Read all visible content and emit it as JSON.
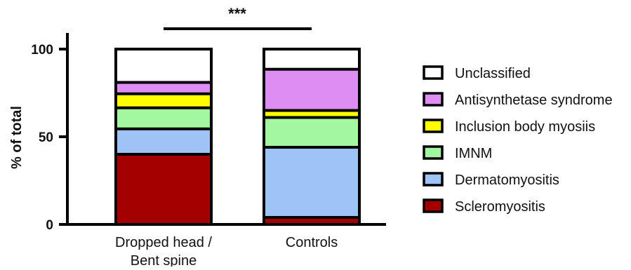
{
  "chart_data": {
    "type": "bar",
    "stacked": true,
    "title": "",
    "xlabel": "",
    "ylabel": "% of total",
    "ylim": [
      0,
      110
    ],
    "yticks": [
      0,
      50,
      100
    ],
    "categories": [
      "Dropped head /\nBent spine",
      "Controls"
    ],
    "series": [
      {
        "name": "Scleromyositis",
        "color": "#a50000",
        "values": [
          40,
          4
        ]
      },
      {
        "name": "Dermatomyositis",
        "color": "#9ec4f5",
        "values": [
          14.5,
          40
        ]
      },
      {
        "name": "IMNM",
        "color": "#a3f7a0",
        "values": [
          12,
          17
        ]
      },
      {
        "name": "Inclusion body myosiis",
        "color": "#ffff00",
        "values": [
          8,
          4
        ]
      },
      {
        "name": "Antisynthetase syndrome",
        "color": "#dd8ef2",
        "values": [
          6.5,
          23.5
        ]
      },
      {
        "name": "Unclassified",
        "color": "#ffffff",
        "values": [
          19,
          11.5
        ]
      }
    ],
    "significance": "***",
    "legend_position": "right"
  }
}
